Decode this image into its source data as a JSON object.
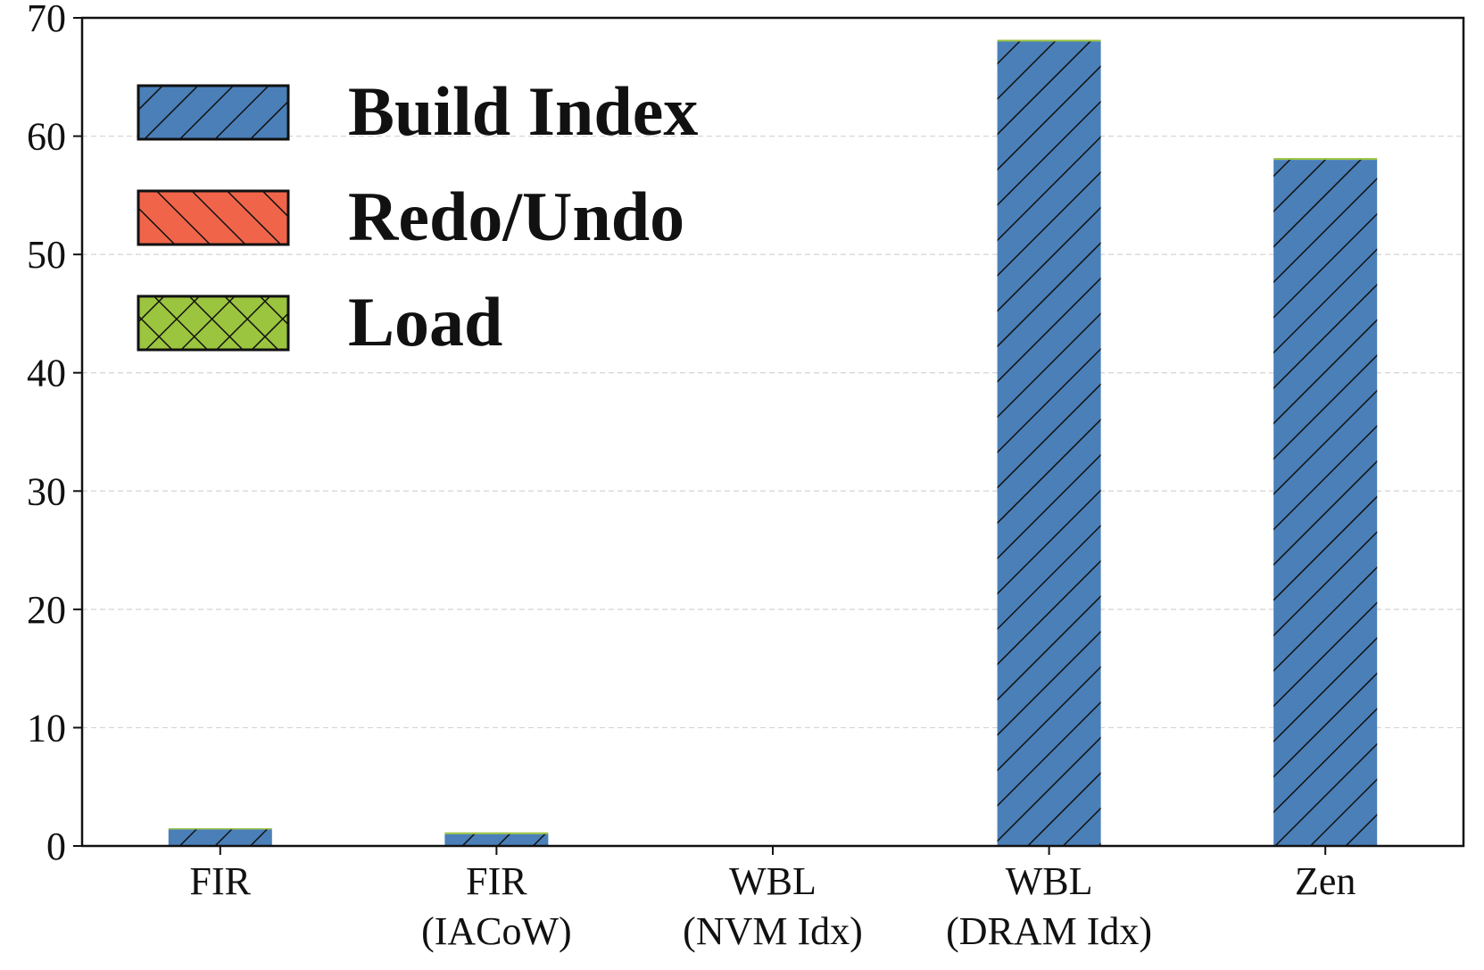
{
  "chart_data": {
    "type": "bar",
    "stacked": true,
    "title": "",
    "xlabel": "",
    "ylabel": "",
    "categories": [
      [
        "FIR"
      ],
      [
        "FIR",
        "(IACoW)"
      ],
      [
        "WBL",
        "(NVM Idx)"
      ],
      [
        "WBL",
        "(DRAM Idx)"
      ],
      [
        "Zen"
      ]
    ],
    "series": [
      {
        "name": "Build Index",
        "values": [
          1.4,
          1.0,
          0,
          68.0,
          58.0
        ],
        "color": "#4a7fb8",
        "hatch": "forward-diagonal"
      },
      {
        "name": "Redo/Undo",
        "values": [
          0,
          0,
          0,
          0,
          0
        ],
        "color": "#f0654a",
        "hatch": "back-diagonal"
      },
      {
        "name": "Load",
        "values": [
          0.1,
          0.15,
          0,
          0.15,
          0.15
        ],
        "color": "#9bc43f",
        "hatch": "crosshatch"
      }
    ],
    "ylim": [
      0,
      70
    ],
    "yticks": [
      0,
      10,
      20,
      30,
      40,
      50,
      60,
      70
    ],
    "grid": "horizontal-dashed",
    "legend_position": "top-left"
  }
}
